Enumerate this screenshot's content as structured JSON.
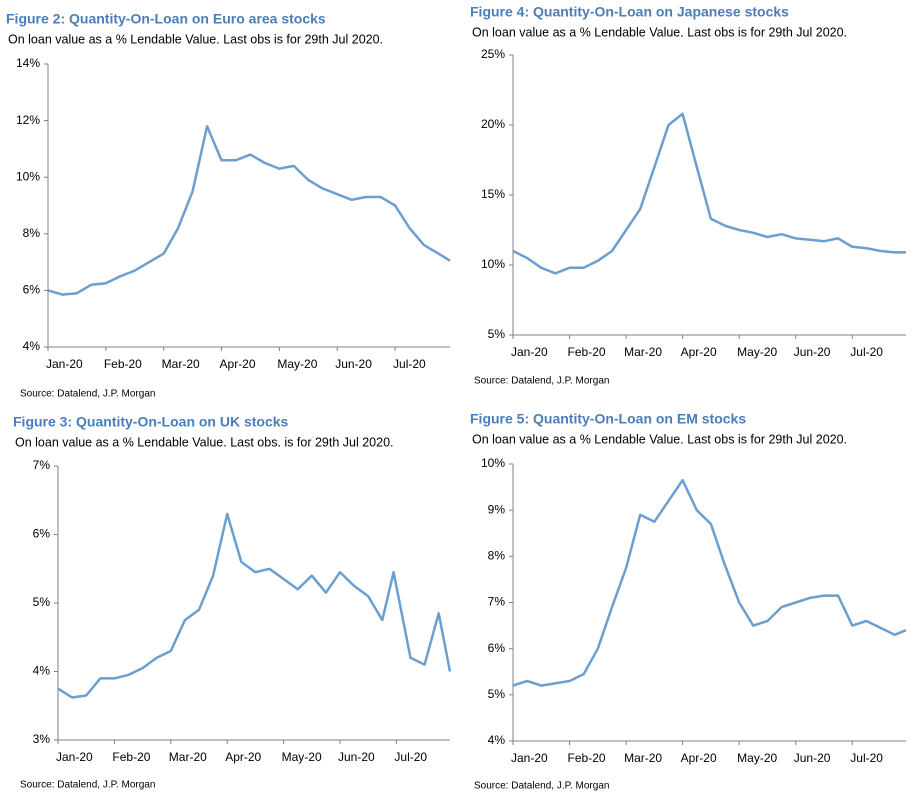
{
  "chart_data": [
    {
      "type": "line",
      "title": "Figure 2: Quantity-On-Loan on Euro area stocks",
      "subtitle": "On loan value as a % Lendable Value. Last obs is for 29th Jul 2020.",
      "source": "Source: Datalend, J.P. Morgan",
      "color": "#6a9fcf",
      "x": [
        0,
        0.25,
        0.5,
        0.75,
        1,
        1.25,
        1.5,
        1.75,
        2,
        2.25,
        2.5,
        2.75,
        3,
        3.25,
        3.5,
        3.75,
        4,
        4.25,
        4.5,
        4.75,
        5,
        5.25,
        5.5,
        5.75,
        6,
        6.25,
        6.5,
        6.75,
        6.95
      ],
      "values": [
        6.0,
        5.85,
        5.9,
        6.2,
        6.25,
        6.5,
        6.7,
        7.0,
        7.3,
        8.2,
        9.5,
        11.8,
        10.6,
        10.6,
        10.8,
        10.5,
        10.3,
        10.4,
        9.9,
        9.6,
        9.4,
        9.2,
        9.3,
        9.3,
        9.0,
        8.2,
        7.6,
        7.3,
        7.05
      ],
      "xlim": [
        0,
        6.95
      ],
      "xticks": [
        {
          "value": 0,
          "label": "Jan-20"
        },
        {
          "value": 1,
          "label": "Feb-20"
        },
        {
          "value": 2,
          "label": "Mar-20"
        },
        {
          "value": 3,
          "label": "Apr-20"
        },
        {
          "value": 4,
          "label": "May-20"
        },
        {
          "value": 5,
          "label": "Jun-20"
        },
        {
          "value": 6,
          "label": "Jul-20"
        }
      ],
      "ylim": [
        4,
        14
      ],
      "yticks": [
        {
          "value": 4,
          "label": "4%"
        },
        {
          "value": 6,
          "label": "6%"
        },
        {
          "value": 8,
          "label": "8%"
        },
        {
          "value": 10,
          "label": "10%"
        },
        {
          "value": 12,
          "label": "12%"
        },
        {
          "value": 14,
          "label": "14%"
        }
      ]
    },
    {
      "type": "line",
      "title": "Figure 4: Quantity-On-Loan on Japanese stocks",
      "subtitle": "On loan value as a % Lendable Value. Last obs is for 29th Jul 2020.",
      "source": "Source: Datalend, J.P. Morgan",
      "color": "#6a9fcf",
      "x": [
        0,
        0.25,
        0.5,
        0.75,
        1,
        1.25,
        1.5,
        1.75,
        2,
        2.25,
        2.5,
        2.75,
        3,
        3.25,
        3.5,
        3.75,
        4,
        4.25,
        4.5,
        4.75,
        5,
        5.25,
        5.5,
        5.75,
        6,
        6.25,
        6.5,
        6.75,
        6.95
      ],
      "values": [
        11.0,
        10.5,
        9.8,
        9.4,
        9.8,
        9.8,
        10.3,
        11.0,
        12.5,
        14.0,
        17.0,
        20.0,
        20.8,
        17.0,
        13.3,
        12.8,
        12.5,
        12.3,
        12.0,
        12.2,
        11.9,
        11.8,
        11.7,
        11.9,
        11.3,
        11.2,
        11.0,
        10.9,
        10.9
      ],
      "xlim": [
        0,
        6.95
      ],
      "xticks": [
        {
          "value": 0,
          "label": "Jan-20"
        },
        {
          "value": 1,
          "label": "Feb-20"
        },
        {
          "value": 2,
          "label": "Mar-20"
        },
        {
          "value": 3,
          "label": "Apr-20"
        },
        {
          "value": 4,
          "label": "May-20"
        },
        {
          "value": 5,
          "label": "Jun-20"
        },
        {
          "value": 6,
          "label": "Jul-20"
        }
      ],
      "ylim": [
        5,
        25
      ],
      "yticks": [
        {
          "value": 5,
          "label": "5%"
        },
        {
          "value": 10,
          "label": "10%"
        },
        {
          "value": 15,
          "label": "15%"
        },
        {
          "value": 20,
          "label": "20%"
        },
        {
          "value": 25,
          "label": "25%"
        }
      ]
    },
    {
      "type": "line",
      "title": "Figure 3: Quantity-On-Loan on UK stocks",
      "subtitle": "On loan value as a % Lendable Value. Last obs. is for 29th Jul 2020.",
      "source": "Source: Datalend, J.P. Morgan",
      "color": "#6a9fcf",
      "x": [
        0,
        0.25,
        0.5,
        0.75,
        1,
        1.25,
        1.5,
        1.75,
        2,
        2.25,
        2.5,
        2.75,
        3,
        3.25,
        3.5,
        3.75,
        4,
        4.25,
        4.5,
        4.75,
        5,
        5.25,
        5.5,
        5.75,
        5.95,
        6.25,
        6.5,
        6.75,
        6.95
      ],
      "values": [
        3.75,
        3.62,
        3.65,
        3.9,
        3.9,
        3.95,
        4.05,
        4.2,
        4.3,
        4.75,
        4.9,
        5.4,
        6.3,
        5.6,
        5.45,
        5.5,
        5.35,
        5.2,
        5.4,
        5.15,
        5.45,
        5.25,
        5.1,
        4.75,
        5.45,
        4.2,
        4.1,
        4.85,
        4.0
      ],
      "xlim": [
        0,
        6.95
      ],
      "xticks": [
        {
          "value": 0,
          "label": "Jan-20"
        },
        {
          "value": 1,
          "label": "Feb-20"
        },
        {
          "value": 2,
          "label": "Mar-20"
        },
        {
          "value": 3,
          "label": "Apr-20"
        },
        {
          "value": 4,
          "label": "May-20"
        },
        {
          "value": 5,
          "label": "Jun-20"
        },
        {
          "value": 6,
          "label": "Jul-20"
        }
      ],
      "ylim": [
        3,
        7
      ],
      "yticks": [
        {
          "value": 3,
          "label": "3%"
        },
        {
          "value": 4,
          "label": "4%"
        },
        {
          "value": 5,
          "label": "5%"
        },
        {
          "value": 6,
          "label": "6%"
        },
        {
          "value": 7,
          "label": "7%"
        }
      ]
    },
    {
      "type": "line",
      "title": "Figure 5: Quantity-On-Loan on EM stocks",
      "subtitle": "On loan value as a % Lendable Value. Last obs is for 29th Jul 2020.",
      "source": "Source: Datalend, J.P. Morgan",
      "color": "#6a9fcf",
      "x": [
        0,
        0.25,
        0.5,
        0.75,
        1,
        1.25,
        1.5,
        1.75,
        2,
        2.25,
        2.5,
        2.75,
        3,
        3.25,
        3.5,
        3.75,
        4,
        4.25,
        4.5,
        4.75,
        5,
        5.25,
        5.5,
        5.75,
        6,
        6.25,
        6.5,
        6.75,
        6.95
      ],
      "values": [
        5.2,
        5.3,
        5.2,
        5.25,
        5.3,
        5.45,
        6.0,
        6.9,
        7.75,
        8.9,
        8.75,
        9.2,
        9.65,
        9.0,
        8.7,
        7.8,
        7.0,
        6.5,
        6.6,
        6.9,
        7.0,
        7.1,
        7.15,
        7.15,
        6.5,
        6.6,
        6.45,
        6.3,
        6.4
      ],
      "xlim": [
        0,
        6.95
      ],
      "xticks": [
        {
          "value": 0,
          "label": "Jan-20"
        },
        {
          "value": 1,
          "label": "Feb-20"
        },
        {
          "value": 2,
          "label": "Mar-20"
        },
        {
          "value": 3,
          "label": "Apr-20"
        },
        {
          "value": 4,
          "label": "May-20"
        },
        {
          "value": 5,
          "label": "Jun-20"
        },
        {
          "value": 6,
          "label": "Jul-20"
        }
      ],
      "ylim": [
        4,
        10
      ],
      "yticks": [
        {
          "value": 4,
          "label": "4%"
        },
        {
          "value": 5,
          "label": "5%"
        },
        {
          "value": 6,
          "label": "6%"
        },
        {
          "value": 7,
          "label": "7%"
        },
        {
          "value": 8,
          "label": "8%"
        },
        {
          "value": 9,
          "label": "9%"
        },
        {
          "value": 10,
          "label": "10%"
        }
      ]
    }
  ]
}
